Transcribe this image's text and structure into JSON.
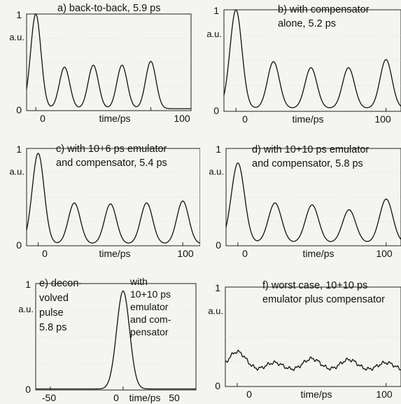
{
  "chart_data": [
    {
      "id": "a",
      "type": "line",
      "label_lines": [
        "a) back-to-back, 5.9 ps"
      ],
      "xlabel": "time/ps",
      "ylabel": "a.u.",
      "xticks": [
        0,
        100
      ],
      "yticks": [
        0,
        1
      ],
      "xlim": [
        -8,
        135
      ],
      "ylim": [
        0,
        1
      ],
      "pulse_width_ps": 5.9,
      "baseline": 0.02,
      "peaks": [
        {
          "x": 0,
          "y": 1.0,
          "w": 5.9
        },
        {
          "x": 25,
          "y": 0.45,
          "w": 5.9
        },
        {
          "x": 50,
          "y": 0.47,
          "w": 5.9
        },
        {
          "x": 75,
          "y": 0.47,
          "w": 5.9
        },
        {
          "x": 100,
          "y": 0.51,
          "w": 5.9
        }
      ],
      "series": [
        {
          "values": []
        }
      ]
    },
    {
      "id": "b",
      "type": "line",
      "label_lines": [
        "b) with compensator",
        "alone, 5.2 ps"
      ],
      "xlabel": "time/ps",
      "ylabel": "a.u.",
      "xticks": [
        0,
        100
      ],
      "yticks": [
        0,
        1
      ],
      "xlim": [
        -8,
        110
      ],
      "ylim": [
        0,
        1
      ],
      "pulse_width_ps": 5.2,
      "baseline": 0.03,
      "peaks": [
        {
          "x": 0,
          "y": 1.0,
          "w": 5.2
        },
        {
          "x": 25,
          "y": 0.49,
          "w": 5.2
        },
        {
          "x": 50,
          "y": 0.43,
          "w": 5.2
        },
        {
          "x": 75,
          "y": 0.43,
          "w": 5.2
        },
        {
          "x": 100,
          "y": 0.51,
          "w": 5.2
        }
      ],
      "series": [
        {
          "values": []
        }
      ]
    },
    {
      "id": "c",
      "type": "line",
      "label_lines": [
        "c) with 10+6 ps emulator",
        "and compensator, 5.4 ps"
      ],
      "xlabel": "time/ps",
      "ylabel": "a.u.",
      "xticks": [
        0,
        100
      ],
      "yticks": [
        0,
        1
      ],
      "xlim": [
        -8,
        112
      ],
      "ylim": [
        0,
        1
      ],
      "pulse_width_ps": 5.4,
      "baseline": 0.02,
      "peaks": [
        {
          "x": 0,
          "y": 0.95,
          "w": 5.4
        },
        {
          "x": 25,
          "y": 0.44,
          "w": 5.4
        },
        {
          "x": 50,
          "y": 0.43,
          "w": 5.4
        },
        {
          "x": 75,
          "y": 0.44,
          "w": 5.4
        },
        {
          "x": 100,
          "y": 0.46,
          "w": 5.4
        }
      ],
      "series": [
        {
          "values": []
        }
      ]
    },
    {
      "id": "d",
      "type": "line",
      "label_lines": [
        "d) with 10+10 ps emulator",
        "and compensator, 5.8 ps"
      ],
      "xlabel": "time/ps",
      "ylabel": "a.u.",
      "xticks": [
        0,
        100
      ],
      "yticks": [
        0,
        1
      ],
      "xlim": [
        -8,
        110
      ],
      "ylim": [
        0,
        1
      ],
      "pulse_width_ps": 5.8,
      "baseline": 0.03,
      "peaks": [
        {
          "x": 0,
          "y": 0.85,
          "w": 5.8
        },
        {
          "x": 25,
          "y": 0.44,
          "w": 5.8
        },
        {
          "x": 50,
          "y": 0.42,
          "w": 5.8
        },
        {
          "x": 75,
          "y": 0.37,
          "w": 5.8
        },
        {
          "x": 100,
          "y": 0.48,
          "w": 5.8
        }
      ],
      "series": [
        {
          "values": []
        }
      ]
    },
    {
      "id": "e",
      "type": "line",
      "label_lines": [
        "e) decon-",
        "volved",
        "pulse",
        "5.8 ps"
      ],
      "annotation_lines": [
        "with",
        "10+10 ps",
        "emulator",
        "and com-",
        "pensator"
      ],
      "xlabel": "time/ps",
      "ylabel": "a.u.",
      "xticks": [
        -50,
        0,
        50
      ],
      "yticks": [
        0,
        1
      ],
      "xlim": [
        -60,
        50
      ],
      "ylim": [
        0,
        1
      ],
      "pulse_width_ps": 5.8,
      "baseline": 0.01,
      "peaks": [
        {
          "x": 0,
          "y": 0.93,
          "w": 5.8
        }
      ],
      "series": [
        {
          "values": []
        }
      ]
    },
    {
      "id": "f",
      "type": "line",
      "label_lines": [
        "f) worst case, 10+10 ps",
        "emulator plus compensator"
      ],
      "xlabel": "time/ps",
      "ylabel": "a.u.",
      "xticks": [
        0,
        100
      ],
      "yticks": [
        0,
        1
      ],
      "xlim": [
        -8,
        110
      ],
      "ylim": [
        0,
        1
      ],
      "pulse_width_ps": null,
      "baseline": 0.15,
      "peaks": [
        {
          "x": 0,
          "y": 0.35,
          "w": 8
        },
        {
          "x": 25,
          "y": 0.24,
          "w": 8
        },
        {
          "x": 50,
          "y": 0.28,
          "w": 8
        },
        {
          "x": 75,
          "y": 0.27,
          "w": 8
        },
        {
          "x": 100,
          "y": 0.24,
          "w": 8
        }
      ],
      "series": [
        {
          "values": []
        }
      ]
    }
  ]
}
